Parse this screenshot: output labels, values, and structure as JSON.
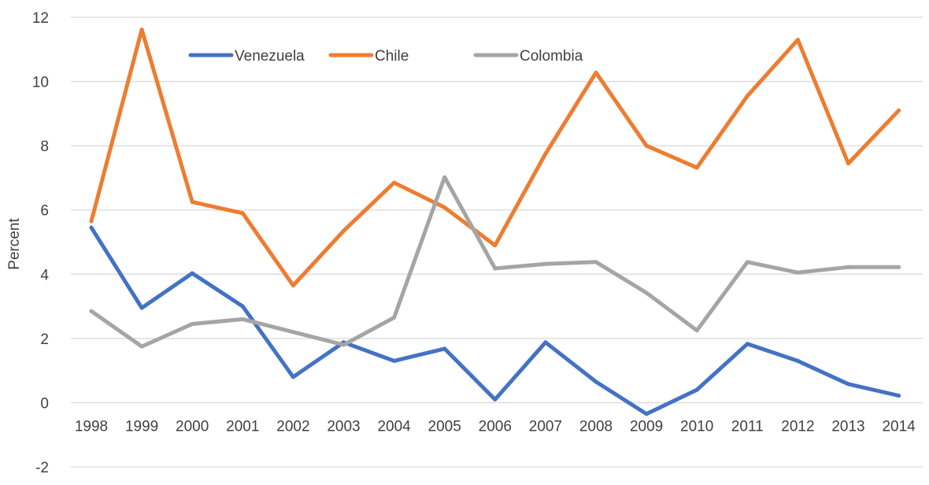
{
  "chart_data": {
    "type": "line",
    "title": "",
    "xlabel": "",
    "ylabel": "Percent",
    "ylim": [
      -2,
      12
    ],
    "yticks": [
      "-2",
      "0",
      "2",
      "4",
      "6",
      "8",
      "10",
      "12"
    ],
    "grid": true,
    "legend_position": "top-center",
    "categories": [
      "1998",
      "1999",
      "2000",
      "2001",
      "2002",
      "2003",
      "2004",
      "2005",
      "2006",
      "2007",
      "2008",
      "2009",
      "2010",
      "2011",
      "2012",
      "2013",
      "2014"
    ],
    "series": [
      {
        "name": "Venezuela",
        "color": "#4472c4",
        "values": [
          5.45,
          2.95,
          4.03,
          3.0,
          0.8,
          1.88,
          1.3,
          1.68,
          0.1,
          1.88,
          0.65,
          -0.35,
          0.4,
          1.83,
          1.3,
          0.58,
          0.22
        ]
      },
      {
        "name": "Chile",
        "color": "#ed7d31",
        "values": [
          5.65,
          11.62,
          6.25,
          5.9,
          3.65,
          5.35,
          6.85,
          6.08,
          4.9,
          7.75,
          10.28,
          8.0,
          7.32,
          9.55,
          11.3,
          7.45,
          9.1
        ]
      },
      {
        "name": "Colombia",
        "color": "#a5a5a5",
        "values": [
          2.85,
          1.75,
          2.45,
          2.6,
          2.2,
          1.8,
          2.65,
          7.02,
          4.18,
          4.32,
          4.38,
          3.42,
          2.25,
          4.38,
          4.05,
          4.22,
          4.22
        ]
      }
    ]
  }
}
